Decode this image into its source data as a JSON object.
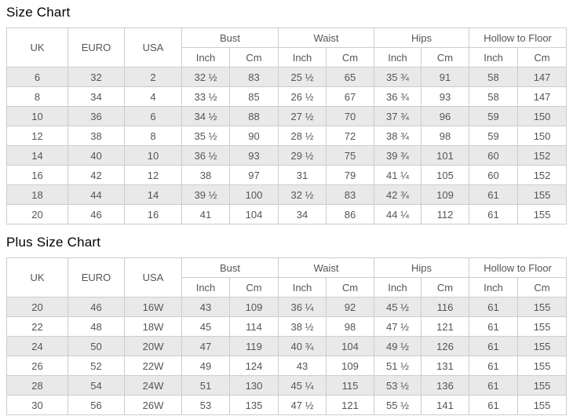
{
  "colors": {
    "stripe_row": "#e9e9e9",
    "border": "#cccccc",
    "cell_text": "#555555",
    "title_text": "#000000"
  },
  "tables": [
    {
      "title": "Size Chart",
      "header": {
        "simple_cols": [
          "UK",
          "EURO",
          "USA"
        ],
        "groups": [
          {
            "label": "Bust",
            "subs": [
              "Inch",
              "Cm"
            ]
          },
          {
            "label": "Waist",
            "subs": [
              "Inch",
              "Cm"
            ]
          },
          {
            "label": "Hips",
            "subs": [
              "Inch",
              "Cm"
            ]
          },
          {
            "label": "Hollow to Floor",
            "subs": [
              "Inch",
              "Cm"
            ]
          }
        ]
      },
      "rows": [
        [
          "6",
          "32",
          "2",
          "32 ½",
          "83",
          "25 ½",
          "65",
          "35 ¾",
          "91",
          "58",
          "147"
        ],
        [
          "8",
          "34",
          "4",
          "33 ½",
          "85",
          "26 ½",
          "67",
          "36 ¾",
          "93",
          "58",
          "147"
        ],
        [
          "10",
          "36",
          "6",
          "34 ½",
          "88",
          "27 ½",
          "70",
          "37 ¾",
          "96",
          "59",
          "150"
        ],
        [
          "12",
          "38",
          "8",
          "35 ½",
          "90",
          "28 ½",
          "72",
          "38 ¾",
          "98",
          "59",
          "150"
        ],
        [
          "14",
          "40",
          "10",
          "36 ½",
          "93",
          "29 ½",
          "75",
          "39 ¾",
          "101",
          "60",
          "152"
        ],
        [
          "16",
          "42",
          "12",
          "38",
          "97",
          "31",
          "79",
          "41 ¼",
          "105",
          "60",
          "152"
        ],
        [
          "18",
          "44",
          "14",
          "39 ½",
          "100",
          "32 ½",
          "83",
          "42 ¾",
          "109",
          "61",
          "155"
        ],
        [
          "20",
          "46",
          "16",
          "41",
          "104",
          "34",
          "86",
          "44 ¼",
          "112",
          "61",
          "155"
        ]
      ]
    },
    {
      "title": "Plus Size Chart",
      "header": {
        "simple_cols": [
          "UK",
          "EURO",
          "USA"
        ],
        "groups": [
          {
            "label": "Bust",
            "subs": [
              "Inch",
              "Cm"
            ]
          },
          {
            "label": "Waist",
            "subs": [
              "Inch",
              "Cm"
            ]
          },
          {
            "label": "Hips",
            "subs": [
              "Inch",
              "Cm"
            ]
          },
          {
            "label": "Hollow to Floor",
            "subs": [
              "Inch",
              "Cm"
            ]
          }
        ]
      },
      "rows": [
        [
          "20",
          "46",
          "16W",
          "43",
          "109",
          "36 ¼",
          "92",
          "45 ½",
          "116",
          "61",
          "155"
        ],
        [
          "22",
          "48",
          "18W",
          "45",
          "114",
          "38 ½",
          "98",
          "47 ½",
          "121",
          "61",
          "155"
        ],
        [
          "24",
          "50",
          "20W",
          "47",
          "119",
          "40 ¾",
          "104",
          "49 ½",
          "126",
          "61",
          "155"
        ],
        [
          "26",
          "52",
          "22W",
          "49",
          "124",
          "43",
          "109",
          "51 ½",
          "131",
          "61",
          "155"
        ],
        [
          "28",
          "54",
          "24W",
          "51",
          "130",
          "45 ¼",
          "115",
          "53 ½",
          "136",
          "61",
          "155"
        ],
        [
          "30",
          "56",
          "26W",
          "53",
          "135",
          "47 ½",
          "121",
          "55 ½",
          "141",
          "61",
          "155"
        ]
      ]
    }
  ]
}
